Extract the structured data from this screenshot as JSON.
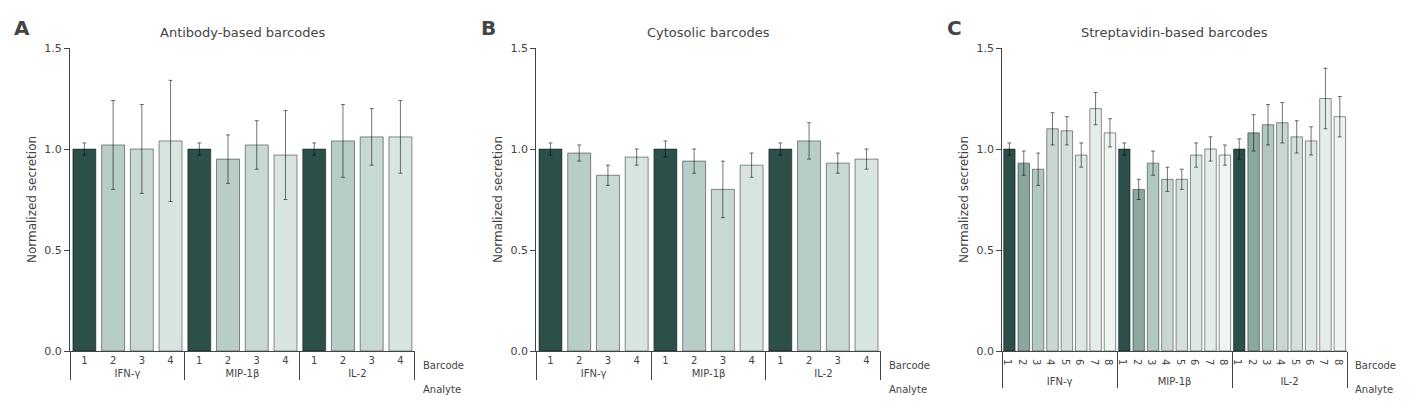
{
  "chart_data": [
    {
      "type": "bar",
      "title": "Antibody-based barcodes",
      "y_label": "Normalized secretion",
      "annotations": [
        "A",
        "Barcode",
        "Analyte"
      ],
      "categories": [
        "IFN-γ",
        "MIP-1β",
        "IL-2"
      ],
      "series": [
        {
          "name": "1",
          "color": "#2d4f4a",
          "values": [
            1.0,
            1.0,
            1.0
          ],
          "errors": [
            0.03,
            0.03,
            0.03
          ]
        },
        {
          "name": "2",
          "color": "#b8ccc8",
          "values": [
            1.02,
            0.95,
            1.04
          ],
          "errors": [
            0.22,
            0.12,
            0.18
          ]
        },
        {
          "name": "3",
          "color": "#c8d8d4",
          "values": [
            1.0,
            1.02,
            1.06
          ],
          "errors": [
            0.22,
            0.12,
            0.14
          ]
        },
        {
          "name": "4",
          "color": "#d8e4e0",
          "values": [
            1.04,
            0.97,
            1.06
          ],
          "errors": [
            0.3,
            0.22,
            0.18
          ]
        }
      ],
      "ylim": [
        0,
        1.5
      ],
      "yticks": [
        {
          "value": 0,
          "label": "0.0"
        },
        0.5,
        {
          "value": 1,
          "label": "1.0"
        },
        1.5
      ],
      "grid": false
    },
    {
      "type": "bar",
      "title": "Cytosolic barcodes",
      "y_label": "Normalized secretion",
      "annotations": [
        "B",
        "Barcode",
        "Analyte"
      ],
      "categories": [
        "IFN-γ",
        "MIP-1β",
        "IL-2"
      ],
      "series": [
        {
          "name": "1",
          "color": "#2d4f4a",
          "values": [
            1.0,
            1.0,
            1.0
          ],
          "errors": [
            0.03,
            0.04,
            0.03
          ]
        },
        {
          "name": "2",
          "color": "#b8ccc8",
          "values": [
            0.98,
            0.94,
            1.04
          ],
          "errors": [
            0.04,
            0.06,
            0.09
          ]
        },
        {
          "name": "3",
          "color": "#c8d8d4",
          "values": [
            0.87,
            0.8,
            0.93
          ],
          "errors": [
            0.05,
            0.14,
            0.05
          ]
        },
        {
          "name": "4",
          "color": "#d8e4e0",
          "values": [
            0.96,
            0.92,
            0.95
          ],
          "errors": [
            0.04,
            0.06,
            0.05
          ]
        }
      ],
      "ylim": [
        0,
        1.5
      ],
      "yticks": [
        {
          "value": 0,
          "label": "0.0"
        },
        0.5,
        {
          "value": 1,
          "label": "1.0"
        },
        1.5
      ],
      "grid": false
    },
    {
      "type": "bar",
      "title": "Streptavidin-based barcodes",
      "y_label": "Normalized secretion",
      "annotations": [
        "C",
        "Barcode",
        "Analyte"
      ],
      "categories": [
        "IFN-γ",
        "MIP-1β",
        "IL-2"
      ],
      "series": [
        {
          "name": "1",
          "color": "#2d4f4a",
          "values": [
            1.0,
            1.0,
            1.0
          ],
          "errors": [
            0.03,
            0.03,
            0.05
          ]
        },
        {
          "name": "2",
          "color": "#8aa8a0",
          "values": [
            0.93,
            0.8,
            1.08
          ],
          "errors": [
            0.06,
            0.05,
            0.09
          ]
        },
        {
          "name": "3",
          "color": "#b0c8c0",
          "values": [
            0.9,
            0.93,
            1.12
          ],
          "errors": [
            0.08,
            0.06,
            0.1
          ]
        },
        {
          "name": "4",
          "color": "#c8d8d0",
          "values": [
            1.1,
            0.85,
            1.13
          ],
          "errors": [
            0.08,
            0.06,
            0.1
          ]
        },
        {
          "name": "5",
          "color": "#d4e0da",
          "values": [
            1.09,
            0.85,
            1.06
          ],
          "errors": [
            0.07,
            0.05,
            0.08
          ]
        },
        {
          "name": "6",
          "color": "#dce8e2",
          "values": [
            0.97,
            0.97,
            1.04
          ],
          "errors": [
            0.06,
            0.06,
            0.07
          ]
        },
        {
          "name": "7",
          "color": "#e4eee8",
          "values": [
            1.2,
            1.0,
            1.25
          ],
          "errors": [
            0.08,
            0.06,
            0.15
          ]
        },
        {
          "name": "8",
          "color": "#eef4f0",
          "values": [
            1.08,
            0.97,
            1.16
          ],
          "errors": [
            0.07,
            0.05,
            0.1
          ]
        }
      ],
      "ylim": [
        0,
        1.5
      ],
      "yticks": [
        {
          "value": 0,
          "label": "0.0"
        },
        0.5,
        {
          "value": 1,
          "label": "1.0"
        },
        1.5
      ],
      "grid": false
    }
  ]
}
